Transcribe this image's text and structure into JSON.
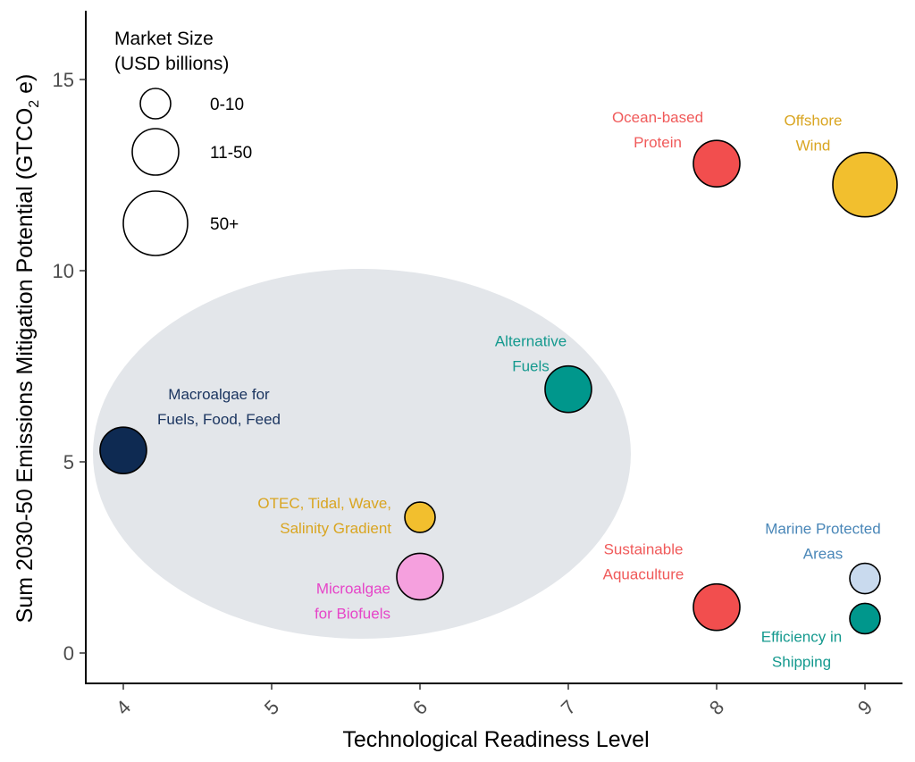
{
  "chart_data": {
    "type": "scatter",
    "title": "",
    "xlabel": "Technological Readiness Level",
    "ylabel": "Sum 2030-50 Emissions Mitigation Potential (GTCO",
    "ylabel_sub": "2",
    "ylabel_end": " e)",
    "xlim": [
      3.75,
      9.25
    ],
    "ylim": [
      -0.75,
      16.8
    ],
    "xticks": [
      "4",
      "5",
      "6",
      "7",
      "8",
      "9"
    ],
    "yticks": [
      "0",
      "5",
      "10",
      "15"
    ],
    "grid": false,
    "highlight_region": {
      "color": "#e3e6ea"
    },
    "legend": {
      "title_line1": "Market Size",
      "title_line2": "(USD billions)",
      "placement": "top-left",
      "entries": [
        {
          "label": "0-10",
          "size": "small"
        },
        {
          "label": "11-50",
          "size": "medium"
        },
        {
          "label": "50+",
          "size": "large"
        }
      ]
    },
    "points": [
      {
        "x": 8,
        "y": 12.8,
        "size": "medium",
        "color": "#f24e4e",
        "label_color": "#f05a5a",
        "label_lines": [
          "Ocean-based",
          "Protein"
        ]
      },
      {
        "x": 9,
        "y": 12.25,
        "size": "large",
        "color": "#f2bf2e",
        "label_color": "#d9a521",
        "label_lines": [
          "Offshore",
          "Wind"
        ]
      },
      {
        "x": 7,
        "y": 6.9,
        "size": "medium",
        "color": "#00978c",
        "label_color": "#14998e",
        "label_lines": [
          "Alternative",
          "Fuels"
        ]
      },
      {
        "x": 4,
        "y": 5.3,
        "size": "medium",
        "color": "#0e2a52",
        "label_color": "#1b3560",
        "label_lines": [
          "Macroalgae for",
          "Fuels, Food, Feed"
        ]
      },
      {
        "x": 6,
        "y": 3.55,
        "size": "small",
        "color": "#f2bf2e",
        "label_color": "#d9a521",
        "label_lines": [
          "OTEC, Tidal, Wave,",
          "Salinity Gradient"
        ]
      },
      {
        "x": 6,
        "y": 2.0,
        "size": "medium",
        "color": "#f5a0de",
        "label_color": "#e645c8",
        "label_lines": [
          "Microalgae",
          "for Biofuels"
        ]
      },
      {
        "x": 8,
        "y": 1.2,
        "size": "medium",
        "color": "#f24e4e",
        "label_color": "#f05a5a",
        "label_lines": [
          "Sustainable",
          "Aquaculture"
        ]
      },
      {
        "x": 9,
        "y": 1.95,
        "size": "small",
        "color": "#c9daee",
        "label_color": "#4a87b8",
        "label_lines": [
          "Marine Protected",
          "Areas"
        ]
      },
      {
        "x": 9,
        "y": 0.9,
        "size": "small",
        "color": "#00978c",
        "label_color": "#14998e",
        "label_lines": [
          "Efficiency in",
          "Shipping"
        ]
      }
    ]
  }
}
